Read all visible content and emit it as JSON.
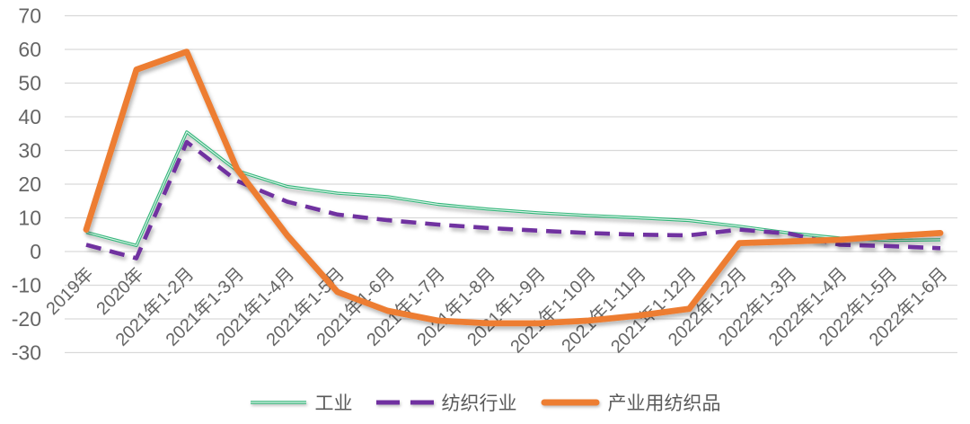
{
  "chart_data": {
    "type": "line",
    "title": "",
    "xlabel": "",
    "ylabel": "",
    "categories": [
      "2019年",
      "2020年",
      "2021年1-2月",
      "2021年1-3月",
      "2021年1-4月",
      "2021年1-5月",
      "2021年1-6月",
      "2021年1-7月",
      "2021年1-8月",
      "2021年1-9月",
      "2021年1-10月",
      "2021年1-11月",
      "2021年1-12月",
      "2022年1-2月",
      "2022年1-3月",
      "2022年1-4月",
      "2022年1-5月",
      "2022年1-6月"
    ],
    "series": [
      {
        "name": "工业",
        "style": "thin-double",
        "color": "#33b579",
        "highlight": "#d9f3e7",
        "values": [
          5.7,
          1.8,
          35.5,
          24.0,
          19.3,
          17.3,
          16.3,
          14.0,
          12.6,
          11.5,
          10.7,
          10.0,
          9.2,
          7.5,
          5.5,
          4.0,
          3.3,
          3.5
        ]
      },
      {
        "name": "纺织行业",
        "style": "dashed",
        "color": "#7030a0",
        "values": [
          2.0,
          -2.0,
          32.5,
          21.0,
          14.8,
          11.0,
          9.3,
          8.0,
          7.0,
          6.2,
          5.5,
          5.0,
          4.8,
          6.5,
          5.3,
          2.0,
          1.6,
          1.0
        ]
      },
      {
        "name": "产业用纺织品",
        "style": "thick",
        "color": "#ed7d31",
        "values": [
          6.5,
          54.0,
          59.3,
          24.5,
          4.8,
          -12.0,
          -17.6,
          -20.5,
          -21.3,
          -21.3,
          -20.5,
          -19.0,
          -17.0,
          2.5,
          3.0,
          3.5,
          4.6,
          5.5
        ]
      }
    ],
    "ylim": [
      -30,
      70
    ],
    "yticks": [
      70,
      60,
      50,
      40,
      30,
      20,
      10,
      0,
      -10,
      -20,
      -30
    ],
    "grid": "horizontal-only",
    "legend_position": "bottom",
    "axis_text_color": "#666666",
    "gridline_color": "#d9d9d9"
  }
}
